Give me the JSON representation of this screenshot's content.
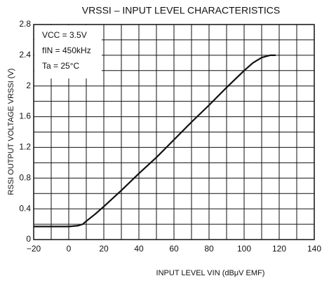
{
  "chart_data": {
    "type": "line",
    "title": "VRSSI – INPUT LEVEL CHARACTERISTICS",
    "xlabel": "INPUT LEVEL   VIN   (dBμV EMF)",
    "ylabel": "RSSI OUTPUT VOLTAGE   VRSSI   (V)",
    "annotations": [
      "VCC = 3.5V",
      "fIN = 450kHz",
      "Ta = 25°C"
    ],
    "x": [
      -20,
      0,
      5,
      8,
      10,
      15,
      20,
      30,
      40,
      50,
      60,
      70,
      80,
      90,
      100,
      105,
      110,
      115,
      118
    ],
    "series": [
      {
        "name": "VRSSI",
        "color": "#111111",
        "values": [
          0.17,
          0.17,
          0.18,
          0.2,
          0.24,
          0.33,
          0.43,
          0.64,
          0.86,
          1.07,
          1.3,
          1.53,
          1.75,
          1.98,
          2.2,
          2.3,
          2.37,
          2.4,
          2.4
        ]
      }
    ],
    "xlim": [
      -20,
      140
    ],
    "xticks": [
      {
        "value": -20,
        "label": "−20"
      },
      0,
      20,
      40,
      60,
      80,
      100,
      120,
      140
    ],
    "xminorticks": [
      -10,
      10,
      30,
      50,
      70,
      90,
      110,
      130
    ],
    "ylim": [
      0,
      2.8
    ],
    "yticks": [
      0,
      0.4,
      0.8,
      1.2,
      1.6,
      2.0,
      2.4,
      2.8
    ],
    "yminorticks": [
      0.2,
      0.6,
      1.0,
      1.4,
      1.8,
      2.2,
      2.6
    ],
    "grid": true
  }
}
